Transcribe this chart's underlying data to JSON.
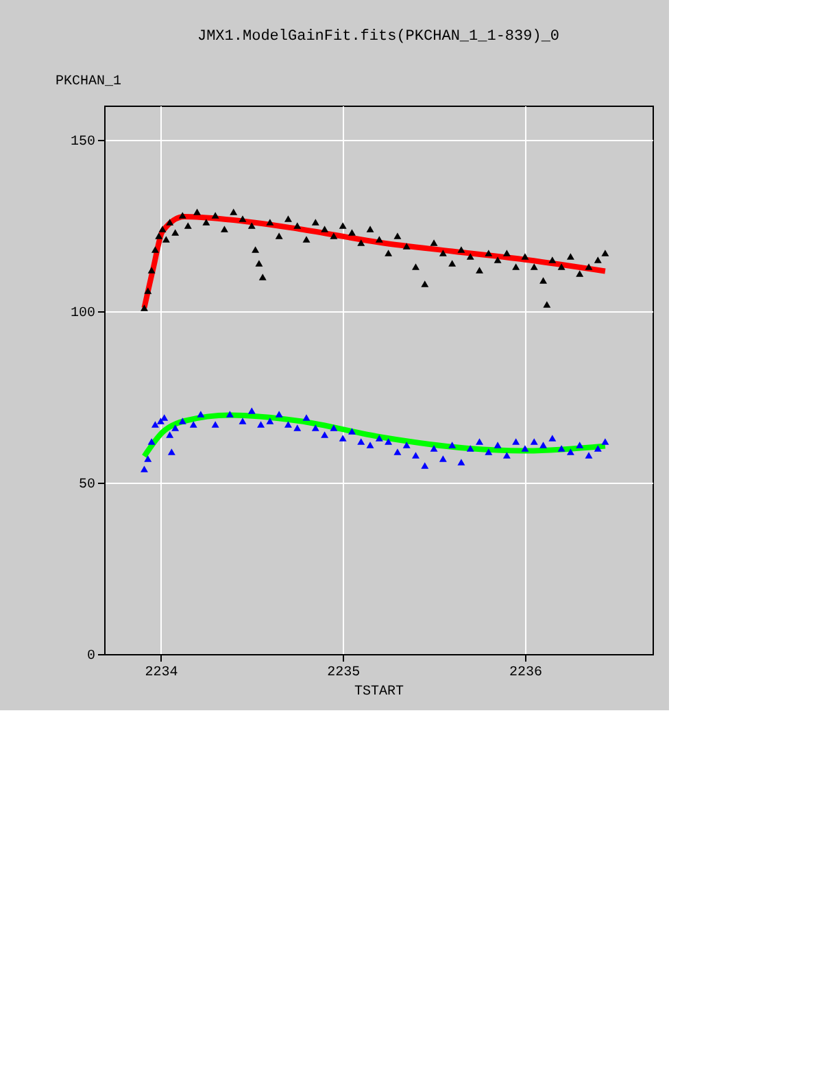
{
  "chart_data": {
    "type": "scatter",
    "title": "JMX1.ModelGainFit.fits(PKCHAN_1_1-839)_0",
    "xlabel": "TSTART",
    "ylabel": "PKCHAN_1",
    "xlim": [
      2233.69,
      2236.7
    ],
    "xticks": [
      2234,
      2235,
      2236
    ],
    "ylim": [
      0,
      160
    ],
    "yticks": [
      0,
      50,
      100,
      150
    ],
    "grid": true,
    "series": [
      {
        "color": "#000000",
        "marker": "triangle",
        "x": [
          2233.91,
          2233.93,
          2233.95,
          2233.97,
          2233.99,
          2234.01,
          2234.03,
          2234.05,
          2234.08,
          2234.12,
          2234.15,
          2234.2,
          2234.25,
          2234.3,
          2234.35,
          2234.4,
          2234.45,
          2234.5,
          2234.52,
          2234.54,
          2234.56,
          2234.6,
          2234.65,
          2234.7,
          2234.75,
          2234.8,
          2234.85,
          2234.9,
          2234.95,
          2235.0,
          2235.05,
          2235.1,
          2235.15,
          2235.2,
          2235.25,
          2235.3,
          2235.35,
          2235.4,
          2235.45,
          2235.5,
          2235.55,
          2235.6,
          2235.65,
          2235.7,
          2235.75,
          2235.8,
          2235.85,
          2235.9,
          2235.95,
          2236.0,
          2236.05,
          2236.1,
          2236.12,
          2236.15,
          2236.2,
          2236.25,
          2236.3,
          2236.35,
          2236.4,
          2236.44
        ],
        "values": [
          101,
          106,
          112,
          118,
          122,
          124,
          121,
          126,
          123,
          128,
          125,
          129,
          126,
          128,
          124,
          129,
          127,
          125,
          118,
          114,
          110,
          126,
          122,
          127,
          125,
          121,
          126,
          124,
          122,
          125,
          123,
          120,
          124,
          121,
          117,
          122,
          119,
          113,
          108,
          120,
          117,
          114,
          118,
          116,
          112,
          117,
          115,
          117,
          113,
          116,
          113,
          109,
          102,
          115,
          113,
          116,
          111,
          113,
          115,
          117
        ]
      },
      {
        "color": "#0000ff",
        "marker": "triangle",
        "x": [
          2233.91,
          2233.93,
          2233.95,
          2233.97,
          2234.0,
          2234.02,
          2234.05,
          2234.06,
          2234.08,
          2234.12,
          2234.18,
          2234.22,
          2234.3,
          2234.38,
          2234.45,
          2234.5,
          2234.55,
          2234.6,
          2234.65,
          2234.7,
          2234.75,
          2234.8,
          2234.85,
          2234.9,
          2234.95,
          2235.0,
          2235.05,
          2235.1,
          2235.15,
          2235.2,
          2235.25,
          2235.3,
          2235.35,
          2235.4,
          2235.45,
          2235.5,
          2235.55,
          2235.6,
          2235.65,
          2235.7,
          2235.75,
          2235.8,
          2235.85,
          2235.9,
          2235.95,
          2236.0,
          2236.05,
          2236.1,
          2236.15,
          2236.2,
          2236.25,
          2236.3,
          2236.35,
          2236.4,
          2236.44
        ],
        "values": [
          54,
          57,
          62,
          67,
          68,
          69,
          64,
          59,
          66,
          68,
          67,
          70,
          67,
          70,
          68,
          71,
          67,
          68,
          70,
          67,
          66,
          69,
          66,
          64,
          66,
          63,
          65,
          62,
          61,
          63,
          62,
          59,
          61,
          58,
          55,
          60,
          57,
          61,
          56,
          60,
          62,
          59,
          61,
          58,
          62,
          60,
          62,
          61,
          63,
          60,
          59,
          61,
          58,
          60,
          62
        ]
      },
      {
        "type": "line",
        "marker": "none",
        "color": "#ff0000",
        "x": [
          2233.91,
          2233.96,
          2234.01,
          2234.13,
          2234.38,
          2234.76,
          2235.21,
          2235.6,
          2236.01,
          2236.44
        ],
        "values": [
          101,
          112.7,
          123.3,
          127.6,
          126.7,
          124,
          120,
          117.5,
          115,
          111.7
        ]
      },
      {
        "type": "line",
        "marker": "none",
        "color": "#00ff00",
        "x": [
          2233.91,
          2234.01,
          2234.13,
          2234.38,
          2234.76,
          2235.21,
          2235.69,
          2236.01,
          2236.44
        ],
        "values": [
          57.7,
          64.7,
          68,
          69.7,
          68,
          63.3,
          60,
          59.3,
          60.7
        ]
      }
    ]
  }
}
